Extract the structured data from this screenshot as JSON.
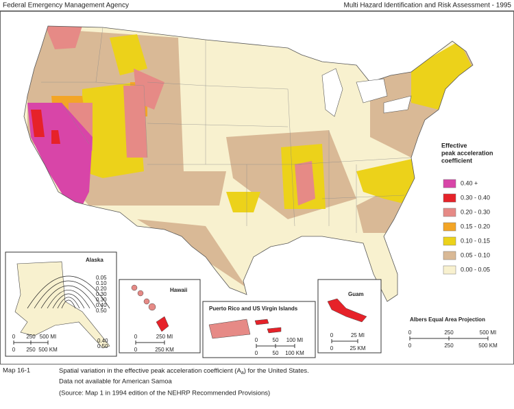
{
  "header": {
    "left": "Federal Emergency Management Agency",
    "right": "Multi Hazard Identification and Risk Assessment - 1995"
  },
  "legend": {
    "title": [
      "Effective",
      "peak acceleration",
      "coefficient"
    ],
    "items": [
      {
        "label": "0.40 +",
        "color": "#d845a8"
      },
      {
        "label": "0.30 - 0.40",
        "color": "#e62229"
      },
      {
        "label": "0.20 - 0.30",
        "color": "#e68a86"
      },
      {
        "label": "0.15 - 0.20",
        "color": "#f3a526"
      },
      {
        "label": "0.10 - 0.15",
        "color": "#ecd21a"
      },
      {
        "label": "0.05 - 0.10",
        "color": "#d9b996"
      },
      {
        "label": "0.00 - 0.05",
        "color": "#f8f1cf"
      }
    ]
  },
  "insets": {
    "alaska": {
      "title": "Alaska",
      "contour_labels": [
        "0.05",
        "0.10",
        "0.20",
        "0.30",
        "0.30",
        "0.40",
        "0.50"
      ],
      "bottom_labels": [
        "0.40",
        "0.50"
      ],
      "scale_mi": [
        "0",
        "250",
        "500 MI"
      ],
      "scale_km": [
        "0",
        "250",
        "500 KM"
      ]
    },
    "hawaii": {
      "title": "Hawaii",
      "scale_mi": [
        "0",
        "250 MI"
      ],
      "scale_km": [
        "0",
        "250 KM"
      ]
    },
    "puerto_rico": {
      "title": "Puerto Rico and US Virgin Islands",
      "scale_mi": [
        "0",
        "50",
        "100 MI"
      ],
      "scale_km": [
        "0",
        "50",
        "100 KM"
      ]
    },
    "guam": {
      "title": "Guam",
      "scale_mi": [
        "0",
        "25 MI"
      ],
      "scale_km": [
        "0",
        "25 KM"
      ]
    }
  },
  "projection": {
    "title": "Albers Equal Area Projection",
    "scale_mi": [
      "0",
      "250",
      "500 MI"
    ],
    "scale_km": [
      "0",
      "250",
      "500 KM"
    ]
  },
  "caption": {
    "id": "Map 16-1",
    "line1_before": "Spatial variation in the effective peak acceleration coefficient (A",
    "line1_sub": "a",
    "line1_after": ") for the United States.",
    "line2": "Data not available for American Samoa",
    "line3": "(Source:  Map 1 in 1994 edition of the NEHRP Recommended Provisions)"
  }
}
